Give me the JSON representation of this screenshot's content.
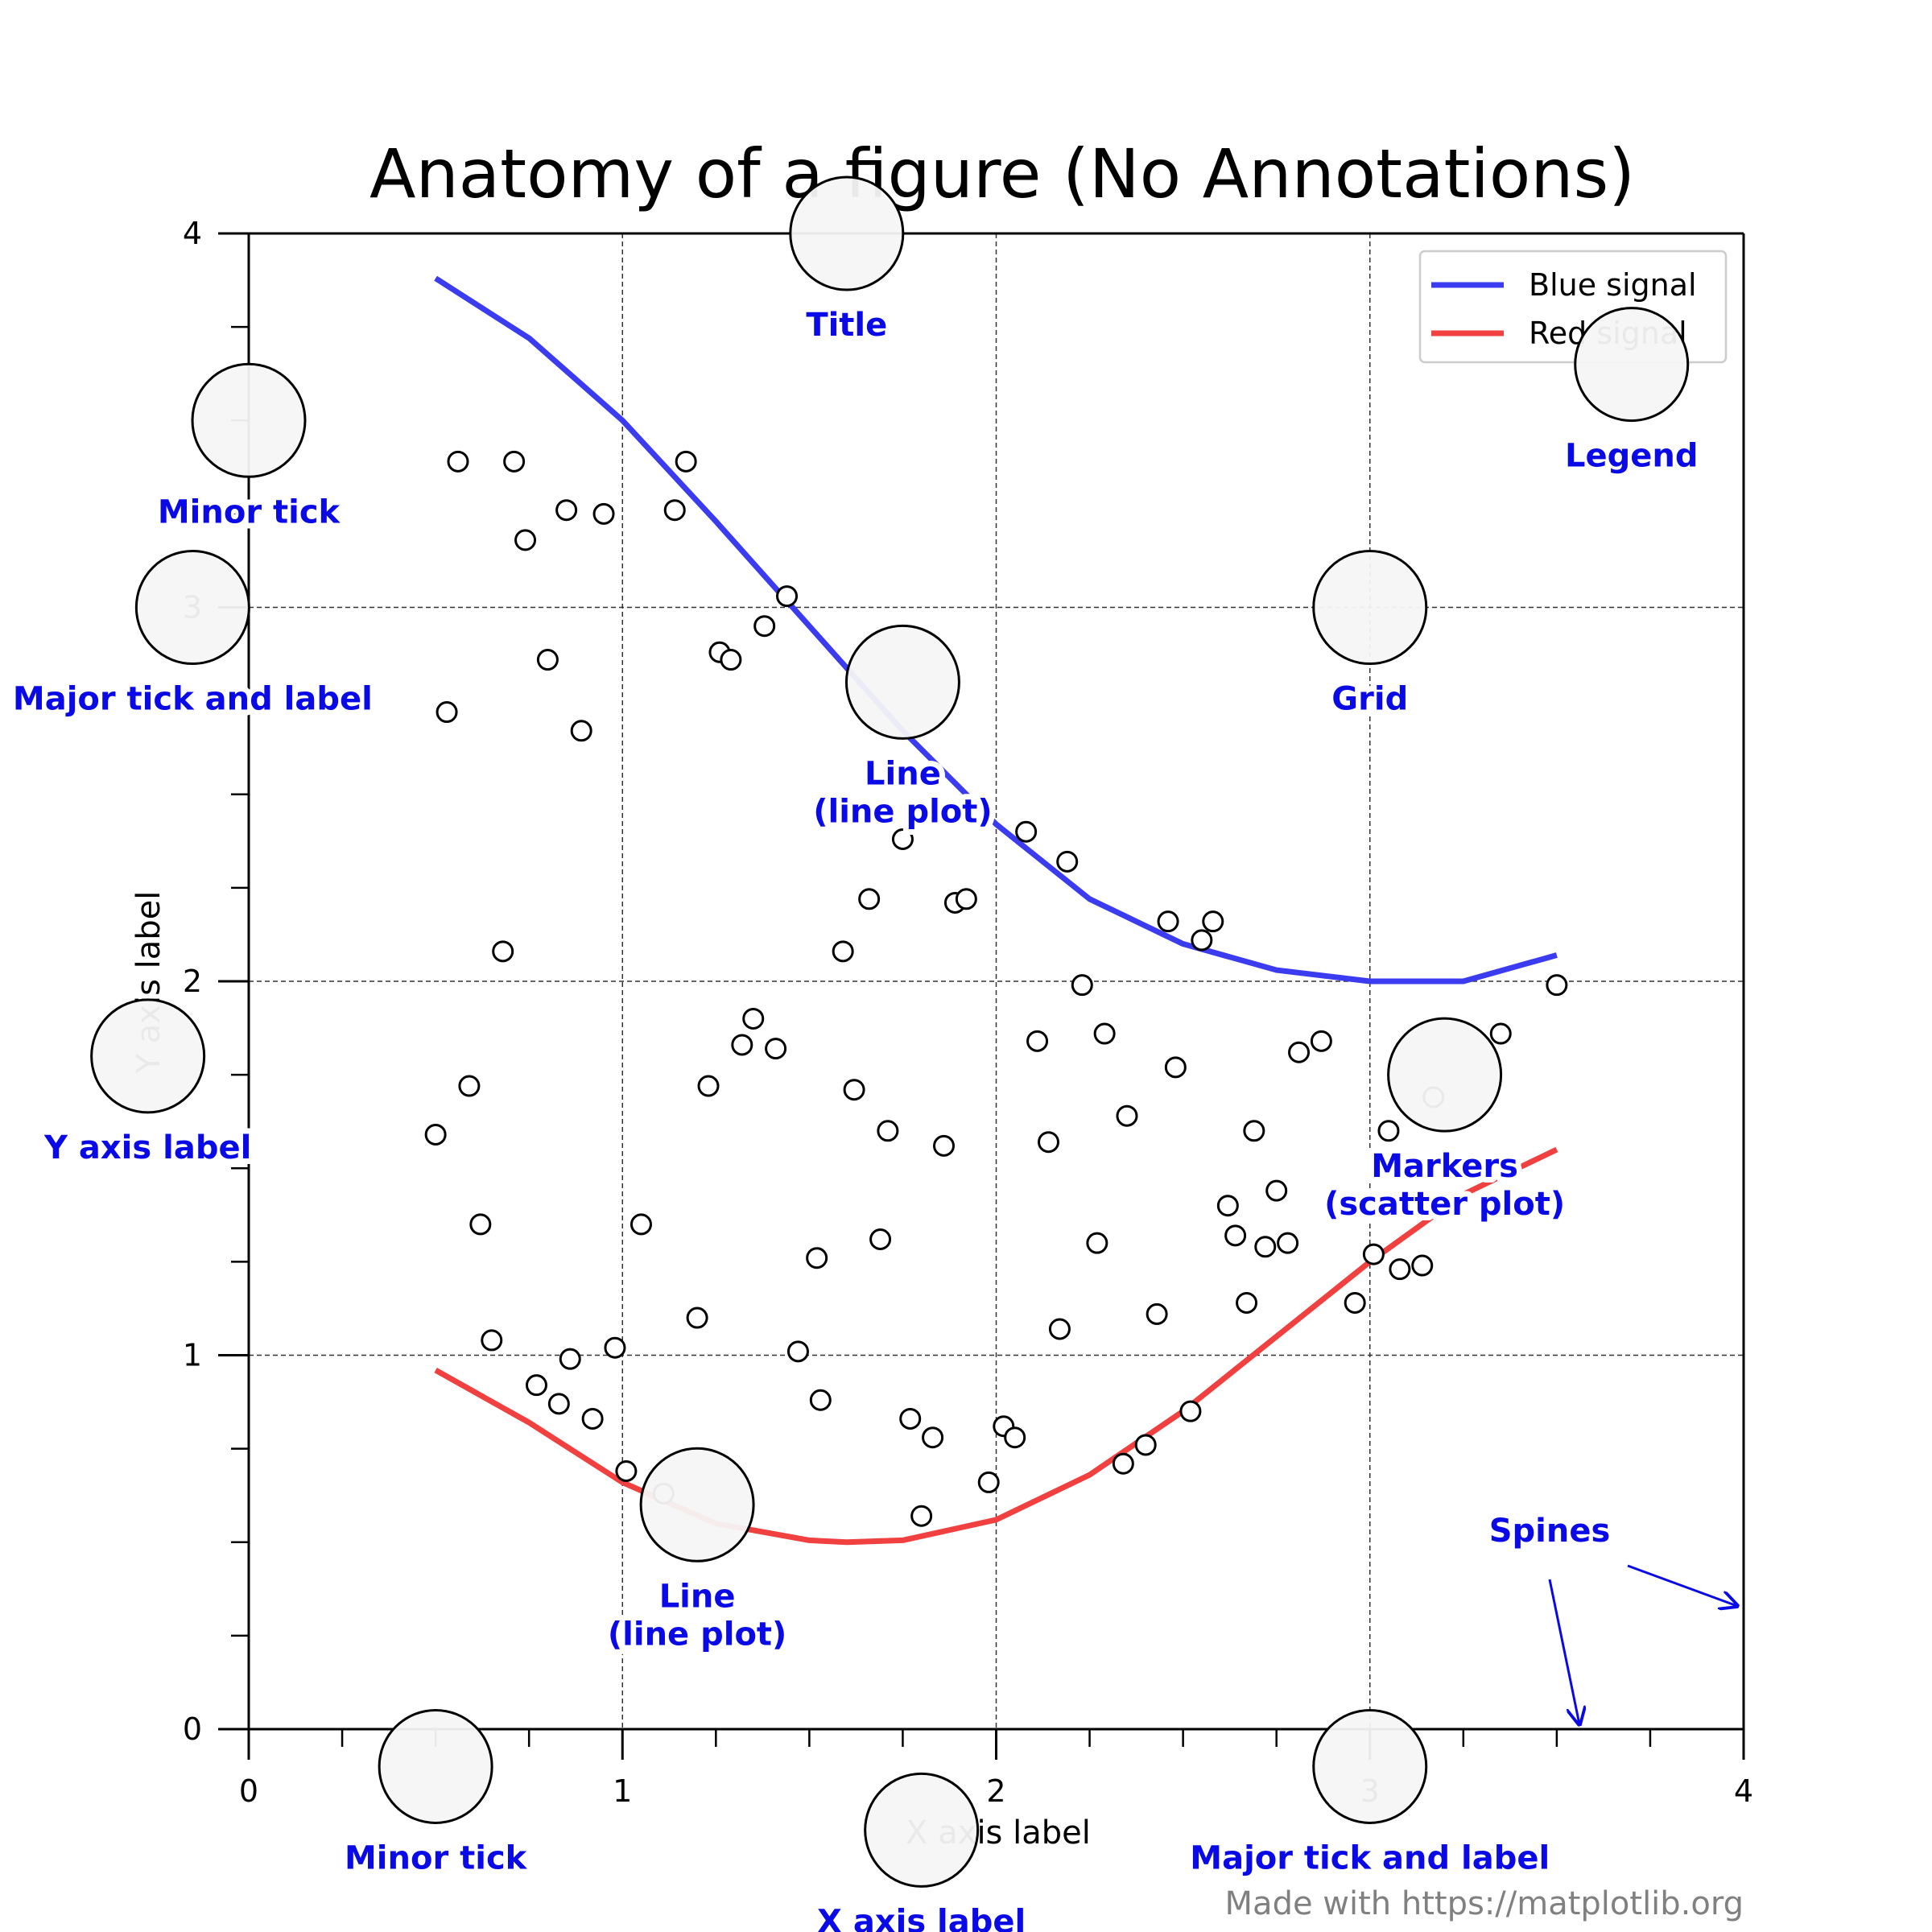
{
  "title": "Anatomy of a figure (No Annotations)",
  "xlabel": "X axis label",
  "ylabel": "Y axis label",
  "credit": "Made with https://matplotlib.org",
  "colors": {
    "blue": "#3b3bf0",
    "red": "#f04040",
    "annotation": "#0a0ae6",
    "grid": "#333333"
  },
  "legend": {
    "position": "upper right",
    "entries": [
      {
        "label": "Blue signal",
        "color": "#3b3bf0"
      },
      {
        "label": "Red signal",
        "color": "#f04040"
      }
    ]
  },
  "annotations": [
    {
      "id": "title",
      "lines": [
        "Title"
      ],
      "target": [
        1.6,
        4.0
      ]
    },
    {
      "id": "legend",
      "lines": [
        "Legend"
      ],
      "target": [
        3.7,
        3.65
      ]
    },
    {
      "id": "minor-tick-y",
      "lines": [
        "Minor tick"
      ],
      "target": [
        0.0,
        3.5
      ]
    },
    {
      "id": "major-tick-y",
      "lines": [
        "Major tick and label"
      ],
      "target": [
        -0.15,
        3.0
      ]
    },
    {
      "id": "grid",
      "lines": [
        "Grid"
      ],
      "target": [
        3.0,
        3.0
      ]
    },
    {
      "id": "line-blue",
      "lines": [
        "Line",
        "(line plot)"
      ],
      "target": [
        1.75,
        2.8
      ]
    },
    {
      "id": "y-axis-label",
      "lines": [
        "Y axis label"
      ],
      "target": [
        -0.27,
        1.8
      ]
    },
    {
      "id": "markers",
      "lines": [
        "Markers",
        "(scatter plot)"
      ],
      "target": [
        3.2,
        1.75
      ]
    },
    {
      "id": "line-red",
      "lines": [
        "Line",
        "(line plot)"
      ],
      "target": [
        1.2,
        0.6
      ]
    },
    {
      "id": "minor-tick-x",
      "lines": [
        "Minor tick"
      ],
      "target": [
        0.5,
        -0.1
      ]
    },
    {
      "id": "x-axis-label",
      "lines": [
        "X axis label"
      ],
      "target": [
        1.8,
        -0.27
      ]
    },
    {
      "id": "major-tick-x",
      "lines": [
        "Major tick and label"
      ],
      "target": [
        3.0,
        -0.1
      ]
    }
  ],
  "spines_label": "Spines",
  "chart_data": {
    "type": "line",
    "xlim": [
      0,
      4
    ],
    "ylim": [
      0,
      4
    ],
    "xticks": [
      0,
      1,
      2,
      3,
      4
    ],
    "yticks": [
      0,
      1,
      2,
      3,
      4
    ],
    "xtick_labels": [
      "0",
      "1",
      "2",
      "3",
      "4"
    ],
    "ytick_labels": [
      "0",
      "1",
      "2",
      "3",
      "4"
    ],
    "minor_ticks": 0.25,
    "grid": true,
    "series": [
      {
        "name": "Blue signal",
        "type": "line",
        "color": "#3b3bf0",
        "x": [
          0.5,
          0.75,
          1.0,
          1.25,
          1.5,
          1.75,
          2.0,
          2.25,
          2.5,
          2.75,
          3.0,
          3.15,
          3.25,
          3.5
        ],
        "y": [
          3.88,
          3.72,
          3.5,
          3.23,
          2.95,
          2.67,
          2.42,
          2.22,
          2.1,
          2.03,
          2.0,
          2.0,
          2.0,
          2.07
        ]
      },
      {
        "name": "Red signal",
        "type": "line",
        "color": "#f04040",
        "x": [
          0.5,
          0.75,
          1.0,
          1.25,
          1.5,
          1.6,
          1.75,
          2.0,
          2.25,
          2.5,
          2.75,
          3.0,
          3.25,
          3.5
        ],
        "y": [
          0.96,
          0.82,
          0.66,
          0.55,
          0.505,
          0.5,
          0.505,
          0.56,
          0.68,
          0.85,
          1.05,
          1.25,
          1.43,
          1.55
        ]
      },
      {
        "name": "Markers",
        "type": "scatter",
        "x": [
          0.56,
          0.53,
          0.71,
          0.74,
          0.85,
          0.95,
          1.17,
          1.14,
          0.8,
          0.89,
          1.44,
          1.38,
          1.26,
          1.29,
          0.68,
          0.59,
          0.5,
          0.62,
          1.75,
          1.66,
          1.59,
          2.08,
          2.19,
          2.46,
          2.55,
          2.58,
          2.23,
          2.11,
          1.89,
          1.92,
          1.35,
          1.32,
          1.41,
          1.23,
          1.62,
          1.71,
          1.86,
          2.14,
          2.29,
          2.35,
          2.48,
          2.69,
          2.81,
          2.87,
          3.05,
          3.17,
          3.35,
          2.75,
          2.62,
          2.64,
          2.72,
          2.78,
          3.01,
          3.08,
          3.14,
          2.96,
          2.67,
          2.27,
          1.05,
          1.2,
          1.52,
          1.69,
          2.43,
          2.17,
          1.47,
          0.98,
          0.65,
          0.86,
          0.77,
          0.92,
          0.83,
          1.53,
          1.77,
          1.83,
          2.02,
          2.05,
          2.52,
          2.4,
          2.34,
          1.98,
          1.01,
          1.11,
          1.8,
          3.5
        ],
        "y": [
          3.39,
          2.72,
          3.39,
          3.18,
          3.26,
          3.25,
          3.39,
          3.26,
          2.86,
          2.67,
          3.03,
          2.95,
          2.88,
          2.86,
          2.08,
          1.72,
          1.59,
          1.35,
          2.38,
          2.22,
          2.08,
          2.4,
          2.32,
          2.16,
          2.11,
          2.16,
          1.99,
          1.84,
          2.21,
          2.22,
          1.9,
          1.83,
          1.82,
          1.72,
          1.71,
          1.6,
          1.56,
          1.57,
          1.86,
          1.64,
          1.77,
          1.6,
          1.81,
          1.84,
          1.6,
          1.69,
          1.86,
          1.44,
          1.4,
          1.32,
          1.29,
          1.3,
          1.27,
          1.23,
          1.24,
          1.14,
          1.14,
          1.3,
          1.35,
          1.1,
          1.26,
          1.31,
          1.11,
          1.07,
          1.01,
          1.02,
          1.04,
          0.99,
          0.92,
          0.83,
          0.87,
          0.88,
          0.83,
          0.78,
          0.81,
          0.78,
          0.85,
          0.76,
          0.71,
          0.66,
          0.69,
          0.63,
          0.57,
          1.99
        ]
      }
    ]
  }
}
